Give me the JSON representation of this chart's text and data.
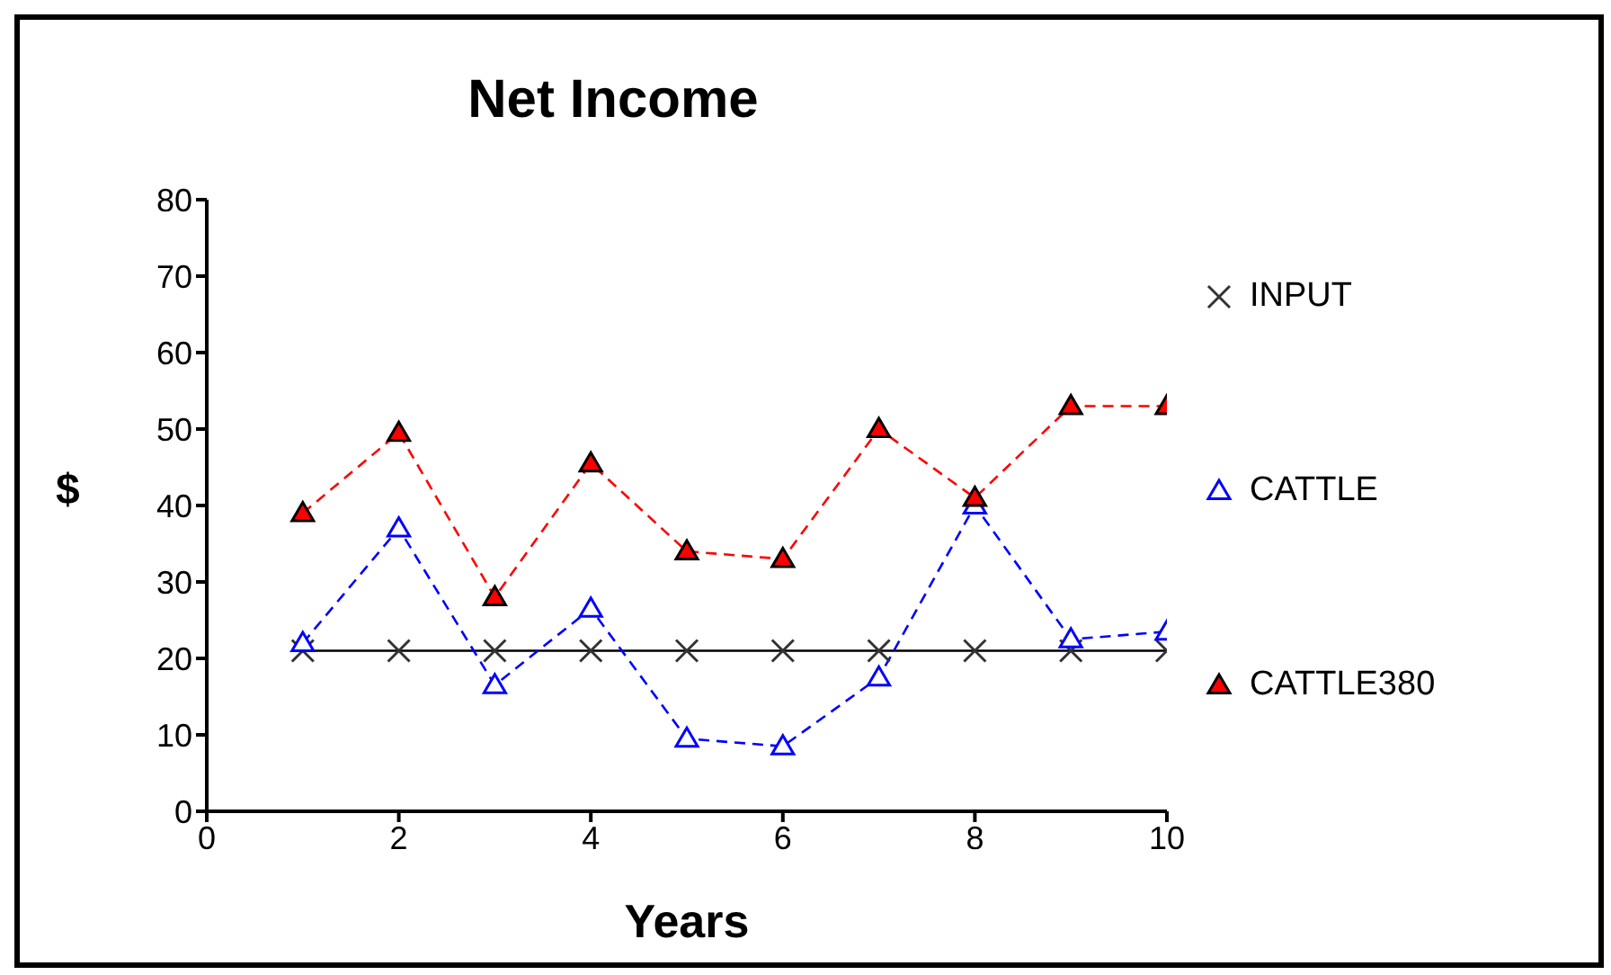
{
  "chart_data": {
    "type": "line",
    "title": "Net Income",
    "xlabel": "Years",
    "ylabel": "$",
    "x": [
      1,
      2,
      3,
      4,
      5,
      6,
      7,
      8,
      9,
      10
    ],
    "series": [
      {
        "name": "INPUT",
        "color": "#000000",
        "marker": "cross",
        "line_style": "solid",
        "values": [
          21,
          21,
          21,
          21,
          21,
          21,
          21,
          21,
          21,
          21
        ]
      },
      {
        "name": "CATTLE",
        "color": "#0000ff",
        "marker": "triangle",
        "line_style": "dashed",
        "values": [
          22,
          37,
          16.5,
          26.5,
          9.5,
          8.5,
          17.5,
          40,
          22.5,
          23.5
        ]
      },
      {
        "name": "CATTLE380",
        "color": "#ff0000",
        "marker": "triangle",
        "line_style": "dashed",
        "values": [
          39,
          49.5,
          28,
          45.5,
          34,
          33,
          50,
          41,
          53,
          53
        ]
      }
    ],
    "xlim": [
      0,
      10
    ],
    "xticks": [
      0,
      2,
      4,
      6,
      8,
      10
    ],
    "ylim": [
      0,
      80
    ],
    "yticks": [
      0,
      10,
      20,
      30,
      40,
      50,
      60,
      70,
      80
    ],
    "grid": false,
    "legend": "right"
  }
}
